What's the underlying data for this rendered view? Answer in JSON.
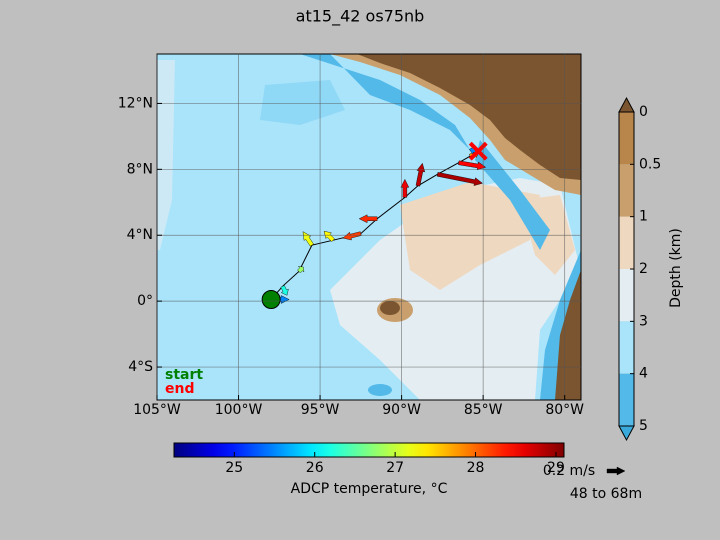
{
  "chart_data": {
    "type": "quiver-map",
    "title": "at15_42 os75nb",
    "xlim": [
      -105,
      -79
    ],
    "ylim": [
      -6,
      15
    ],
    "xticks": [
      {
        "value": -105,
        "label": "105°W"
      },
      {
        "value": -100,
        "label": "100°W"
      },
      {
        "value": -95,
        "label": "95°W"
      },
      {
        "value": -90,
        "label": "90°W"
      },
      {
        "value": -85,
        "label": "85°W"
      },
      {
        "value": -80,
        "label": "80°W"
      }
    ],
    "yticks": [
      {
        "value": -4,
        "label": "4°S"
      },
      {
        "value": 0,
        "label": "0°"
      },
      {
        "value": 4,
        "label": "4°N"
      },
      {
        "value": 8,
        "label": "8°N"
      },
      {
        "value": 12,
        "label": "12°N"
      }
    ],
    "grid": true,
    "track": {
      "lon": [
        -98.0,
        -97.3,
        -96.3,
        -95.5,
        -94.2,
        -92.5,
        -91.5,
        -89.8,
        -89.0,
        -87.8,
        -86.5,
        -85.8,
        -85.3
      ],
      "lat": [
        0.1,
        0.9,
        1.8,
        3.4,
        3.7,
        4.1,
        5.0,
        6.3,
        7.0,
        7.7,
        8.4,
        8.8,
        9.1
      ],
      "u": [
        0.2,
        0.05,
        0.05,
        -0.1,
        -0.1,
        -0.2,
        -0.2,
        0.0,
        0.05,
        0.5,
        0.3,
        0.1,
        -0.1
      ],
      "v": [
        0.0,
        -0.1,
        0.05,
        0.15,
        0.1,
        -0.05,
        0.0,
        0.2,
        0.25,
        -0.1,
        -0.05,
        0.05,
        0.02
      ],
      "temp": [
        25.5,
        26.2,
        26.8,
        27.2,
        27.3,
        28.2,
        28.3,
        28.6,
        28.8,
        28.9,
        28.5,
        27.8,
        25.5
      ]
    },
    "start_label": "start",
    "start_color": "#008000",
    "end_label": "end",
    "end_color": "#ff0000",
    "temp_colorbar": {
      "label": "ADCP temperature, °C",
      "clim": [
        24.25,
        29.1
      ],
      "ticks": [
        25,
        26,
        27,
        28,
        29
      ]
    },
    "depth_colorbar": {
      "label": "Depth (km)",
      "levels": [
        0,
        0.5,
        1,
        2,
        3,
        4,
        5
      ],
      "colors": [
        "#b8854a",
        "#c9a06d",
        "#efd8c0",
        "#e4edf2",
        "#a9e4fb",
        "#52b9e9"
      ],
      "over_color": "#7b5530",
      "under_color": "#3aaadd"
    },
    "quiver_key": {
      "value": 0.2,
      "label": "0.2 m/s"
    },
    "depth_range": "48 to 68m"
  }
}
